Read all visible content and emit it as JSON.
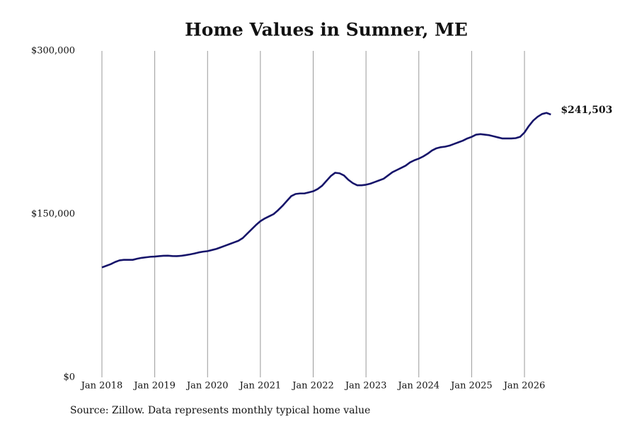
{
  "chart_data": {
    "type": "line",
    "title": "Home Values in Sumner, ME",
    "source": "Source: Zillow. Data represents monthly typical home value",
    "x": [
      "2018-01",
      "2018-02",
      "2018-03",
      "2018-04",
      "2018-05",
      "2018-06",
      "2018-07",
      "2018-08",
      "2018-09",
      "2018-10",
      "2018-11",
      "2018-12",
      "2019-01",
      "2019-02",
      "2019-03",
      "2019-04",
      "2019-05",
      "2019-06",
      "2019-07",
      "2019-08",
      "2019-09",
      "2019-10",
      "2019-11",
      "2019-12",
      "2020-01",
      "2020-02",
      "2020-03",
      "2020-04",
      "2020-05",
      "2020-06",
      "2020-07",
      "2020-08",
      "2020-09",
      "2020-10",
      "2020-11",
      "2020-12",
      "2021-01",
      "2021-02",
      "2021-03",
      "2021-04",
      "2021-05",
      "2021-06",
      "2021-07",
      "2021-08",
      "2021-09",
      "2021-10",
      "2021-11",
      "2021-12",
      "2022-01",
      "2022-02",
      "2022-03",
      "2022-04",
      "2022-05",
      "2022-06",
      "2022-07",
      "2022-08",
      "2022-09",
      "2022-10",
      "2022-11",
      "2022-12",
      "2023-01",
      "2023-02",
      "2023-03",
      "2023-04",
      "2023-05",
      "2023-06",
      "2023-07",
      "2023-08",
      "2023-09",
      "2023-10",
      "2023-11",
      "2023-12",
      "2024-01",
      "2024-02",
      "2024-03",
      "2024-04",
      "2024-05",
      "2024-06",
      "2024-07",
      "2024-08",
      "2024-09",
      "2024-10",
      "2024-11",
      "2024-12",
      "2025-01",
      "2025-02",
      "2025-03",
      "2025-04",
      "2025-05",
      "2025-06",
      "2025-07",
      "2025-08",
      "2025-09",
      "2025-10",
      "2025-11",
      "2025-12",
      "2026-01",
      "2026-02",
      "2026-03",
      "2026-04",
      "2026-05",
      "2026-06",
      "2026-07"
    ],
    "series": [
      {
        "name": "Sumner, ME",
        "color": "#16146a",
        "values": [
          101000,
          102500,
          104000,
          106000,
          107500,
          108000,
          108000,
          108000,
          109000,
          109800,
          110300,
          110800,
          111000,
          111400,
          111700,
          111800,
          111500,
          111400,
          111700,
          112300,
          113000,
          113800,
          114800,
          115500,
          116000,
          117000,
          118000,
          119500,
          121000,
          122500,
          124000,
          125500,
          128000,
          132000,
          136000,
          140000,
          143500,
          146000,
          148000,
          150000,
          153500,
          157500,
          162000,
          166500,
          168500,
          169000,
          169000,
          170000,
          171000,
          173000,
          176000,
          180500,
          185000,
          188000,
          187500,
          185500,
          181500,
          178500,
          176500,
          176500,
          177000,
          178000,
          179500,
          181000,
          182500,
          185500,
          188500,
          190500,
          192500,
          194500,
          197500,
          199500,
          201000,
          203000,
          205500,
          208500,
          210500,
          211500,
          212000,
          213000,
          214500,
          216000,
          217500,
          219500,
          221000,
          223000,
          223500,
          223000,
          222500,
          221500,
          220500,
          219500,
          219500,
          219500,
          219800,
          221000,
          225000,
          231000,
          236000,
          239500,
          242000,
          243000,
          241503
        ]
      }
    ],
    "last_value_label": "$241,503",
    "ylim": [
      0,
      300000
    ],
    "yticks": [
      {
        "value": 0,
        "label": "$0"
      },
      {
        "value": 150000,
        "label": "$150,000"
      },
      {
        "value": 300000,
        "label": "$300,000"
      }
    ],
    "xticks": [
      {
        "value": "2018-01",
        "label": "Jan 2018"
      },
      {
        "value": "2019-01",
        "label": "Jan 2019"
      },
      {
        "value": "2020-01",
        "label": "Jan 2020"
      },
      {
        "value": "2021-01",
        "label": "Jan 2021"
      },
      {
        "value": "2022-01",
        "label": "Jan 2022"
      },
      {
        "value": "2023-01",
        "label": "Jan 2023"
      },
      {
        "value": "2024-01",
        "label": "Jan 2024"
      },
      {
        "value": "2025-01",
        "label": "Jan 2025"
      },
      {
        "value": "2026-01",
        "label": "Jan 2026"
      }
    ],
    "grid": "x"
  }
}
